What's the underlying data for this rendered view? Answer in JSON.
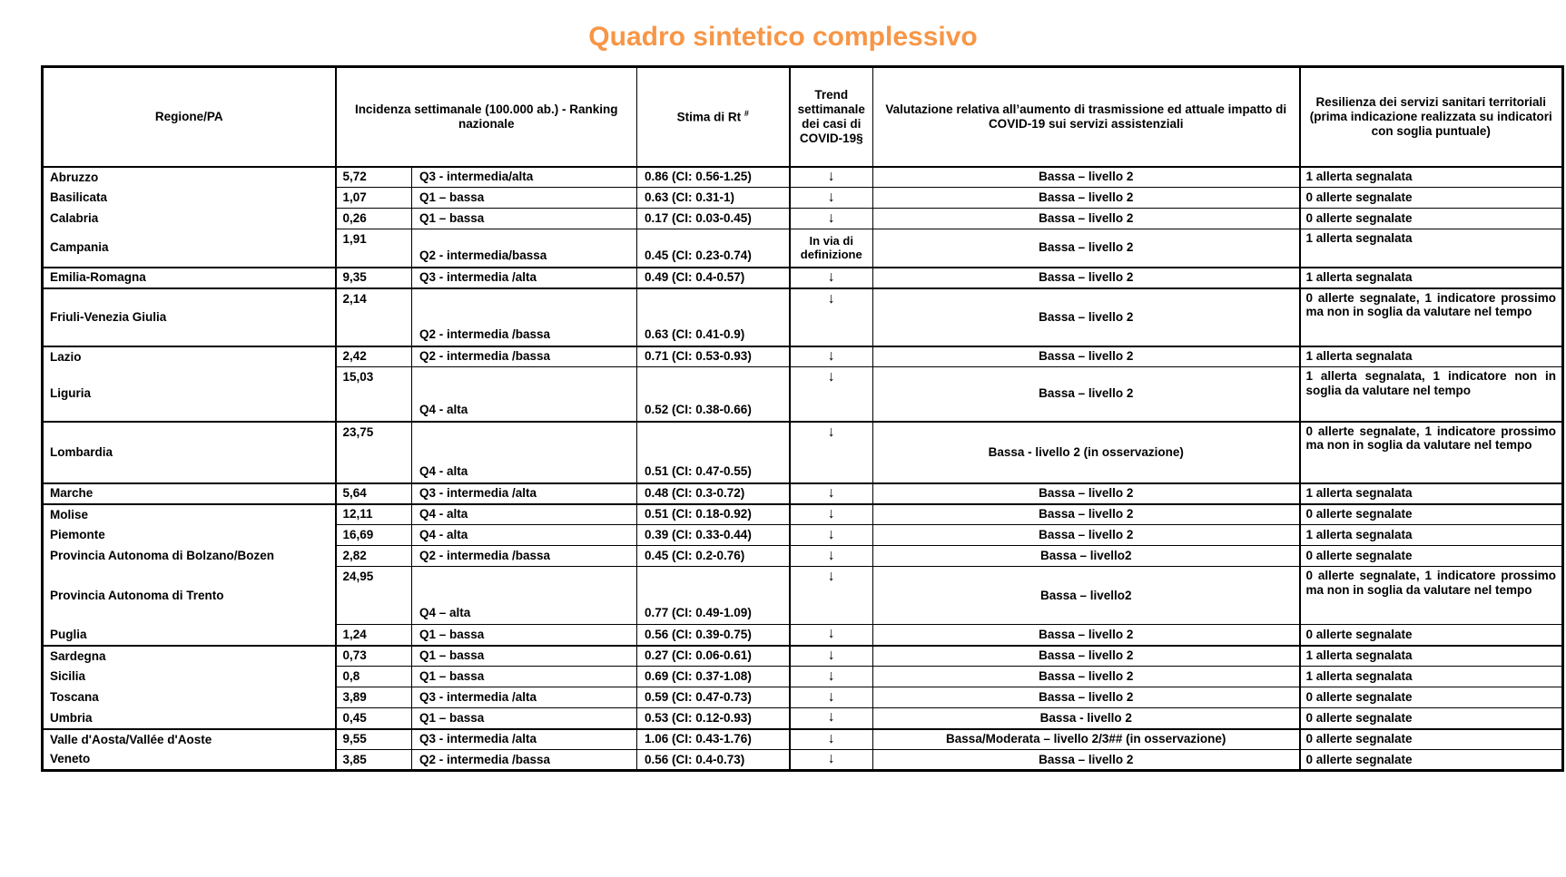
{
  "page": {
    "title": "Quadro sintetico complessivo"
  },
  "colors": {
    "title_orange": "#F79646",
    "border": "#000000",
    "text": "#000000"
  },
  "table": {
    "trend_arrow": "↓",
    "headers": {
      "regione": "Regione/PA",
      "incidenza": "Incidenza settimanale (100.000 ab.) - Ranking nazionale",
      "rt": "Stima di Rt",
      "rt_sup": "#",
      "trend": "Trend settimanale dei casi di COVID-19§",
      "valutazione": "Valutazione relativa all’aumento di trasmissione ed attuale impatto di COVID-19 sui servizi assistenziali",
      "resilienza": "Resilienza dei servizi sanitari territoriali (prima indicazione realizzata su indicatori con soglia puntuale)"
    },
    "rows": [
      {
        "regione": "Abruzzo",
        "incidenza": "5,72",
        "ranking": "Q3 - intermedia/alta",
        "rt": "0.86 (CI: 0.56-1.25)",
        "trend": "↓",
        "valutazione": "Bassa – livello 2",
        "resilienza": "1 allerta segnalata"
      },
      {
        "regione": "Basilicata",
        "incidenza": "1,07",
        "ranking": "Q1 – bassa",
        "rt": "0.63 (CI: 0.31-1)",
        "trend": "↓",
        "valutazione": "Bassa – livello 2",
        "resilienza": "0 allerte segnalate"
      },
      {
        "regione": "Calabria",
        "incidenza": "0,26",
        "ranking": "Q1 – bassa",
        "rt": "0.17 (CI: 0.03-0.45)",
        "trend": "↓",
        "valutazione": "Bassa – livello 2",
        "resilienza": "0 allerte segnalate"
      },
      {
        "regione": "Campania",
        "incidenza": "1,91",
        "ranking": "Q2 - intermedia/bassa",
        "rt": "0.45 (CI: 0.23-0.74)",
        "trend": "In via di definizione",
        "valutazione": "Bassa – livello 2",
        "resilienza": "1 allerta segnalata"
      },
      {
        "regione": "Emilia-Romagna",
        "incidenza": "9,35",
        "ranking": "Q3 - intermedia /alta",
        "rt": "0.49 (CI: 0.4-0.57)",
        "trend": "↓",
        "valutazione": "Bassa – livello 2",
        "resilienza": "1 allerta segnalata"
      },
      {
        "regione": "Friuli-Venezia Giulia",
        "incidenza": "2,14",
        "ranking": "Q2 - intermedia /bassa",
        "rt": "0.63 (CI: 0.41-0.9)",
        "trend": "↓",
        "valutazione": "Bassa – livello 2",
        "resilienza": "0 allerte segnalate, 1 indicatore prossimo ma non in soglia da valutare nel tempo"
      },
      {
        "regione": "Lazio",
        "incidenza": "2,42",
        "ranking": "Q2 - intermedia /bassa",
        "rt": "0.71 (CI: 0.53-0.93)",
        "trend": "↓",
        "valutazione": "Bassa – livello 2",
        "resilienza": "1 allerta segnalata"
      },
      {
        "regione": "Liguria",
        "incidenza": "15,03",
        "ranking": "Q4 - alta",
        "rt": "0.52 (CI: 0.38-0.66)",
        "trend": "↓",
        "valutazione": "Bassa – livello 2",
        "resilienza": "1 allerta segnalata, 1 indicatore non in soglia da valutare nel tempo"
      },
      {
        "regione": "Lombardia",
        "incidenza": "23,75",
        "ranking": "Q4 - alta",
        "rt": "0.51 (CI: 0.47-0.55)",
        "trend": "↓",
        "valutazione": "Bassa  - livello 2 (in osservazione)",
        "resilienza": "0 allerte segnalate, 1 indicatore prossimo ma non in soglia da valutare nel tempo"
      },
      {
        "regione": "Marche",
        "incidenza": "5,64",
        "ranking": "Q3 - intermedia /alta",
        "rt": "0.48 (CI: 0.3-0.72)",
        "trend": "↓",
        "valutazione": "Bassa – livello 2",
        "resilienza": "1 allerta segnalata"
      },
      {
        "regione": "Molise",
        "incidenza": "12,11",
        "ranking": "Q4 - alta",
        "rt": "0.51 (CI: 0.18-0.92)",
        "trend": "↓",
        "valutazione": "Bassa – livello 2",
        "resilienza": "0 allerte segnalate"
      },
      {
        "regione": "Piemonte",
        "incidenza": "16,69",
        "ranking": "Q4 - alta",
        "rt": "0.39 (CI: 0.33-0.44)",
        "trend": "↓",
        "valutazione": "Bassa – livello 2",
        "resilienza": "1 allerta segnalata"
      },
      {
        "regione": "Provincia Autonoma di Bolzano/Bozen",
        "incidenza": "2,82",
        "ranking": "Q2 - intermedia /bassa",
        "rt": "0.45 (CI: 0.2-0.76)",
        "trend": "↓",
        "valutazione": "Bassa – livello2",
        "resilienza": "0 allerte segnalate"
      },
      {
        "regione": "Provincia Autonoma di Trento",
        "incidenza": "24,95",
        "ranking": "Q4 – alta",
        "rt": "0.77 (CI: 0.49-1.09)",
        "trend": "↓",
        "valutazione": "Bassa – livello2",
        "resilienza": "0 allerte segnalate, 1 indicatore prossimo ma non in soglia da valutare nel tempo"
      },
      {
        "regione": "Puglia",
        "incidenza": "1,24",
        "ranking": "Q1 – bassa",
        "rt": "0.56 (CI: 0.39-0.75)",
        "trend": "↓",
        "valutazione": "Bassa – livello 2",
        "resilienza": "0 allerte segnalate"
      },
      {
        "regione": "Sardegna",
        "incidenza": "0,73",
        "ranking": "Q1 – bassa",
        "rt": "0.27 (CI: 0.06-0.61)",
        "trend": "↓",
        "valutazione": "Bassa – livello 2",
        "resilienza": "1 allerta segnalata"
      },
      {
        "regione": "Sicilia",
        "incidenza": "0,8",
        "ranking": "Q1 – bassa",
        "rt": "0.69 (CI: 0.37-1.08)",
        "trend": "↓",
        "valutazione": "Bassa – livello 2",
        "resilienza": "1 allerta segnalata"
      },
      {
        "regione": "Toscana",
        "incidenza": "3,89",
        "ranking": "Q3 - intermedia /alta",
        "rt": "0.59 (CI: 0.47-0.73)",
        "trend": "↓",
        "valutazione": "Bassa – livello 2",
        "resilienza": "0 allerte segnalate"
      },
      {
        "regione": "Umbria",
        "incidenza": "0,45",
        "ranking": "Q1 – bassa",
        "rt": "0.53 (CI: 0.12-0.93)",
        "trend": "↓",
        "valutazione": "Bassa - livello 2",
        "resilienza": "0 allerte segnalate"
      },
      {
        "regione": "Valle d'Aosta/Vallée d'Aoste",
        "incidenza": "9,55",
        "ranking": "Q3 - intermedia /alta",
        "rt": "1.06 (CI: 0.43-1.76)",
        "trend": "↓",
        "valutazione": "Bassa/Moderata – livello 2/3## (in osservazione)",
        "resilienza": "0 allerte segnalate"
      },
      {
        "regione": "Veneto",
        "incidenza": "3,85",
        "ranking": "Q2 - intermedia /bassa",
        "rt": "0.56 (CI: 0.4-0.73)",
        "trend": "↓",
        "valutazione": "Bassa – livello 2",
        "resilienza": "0 allerte segnalate"
      }
    ]
  }
}
